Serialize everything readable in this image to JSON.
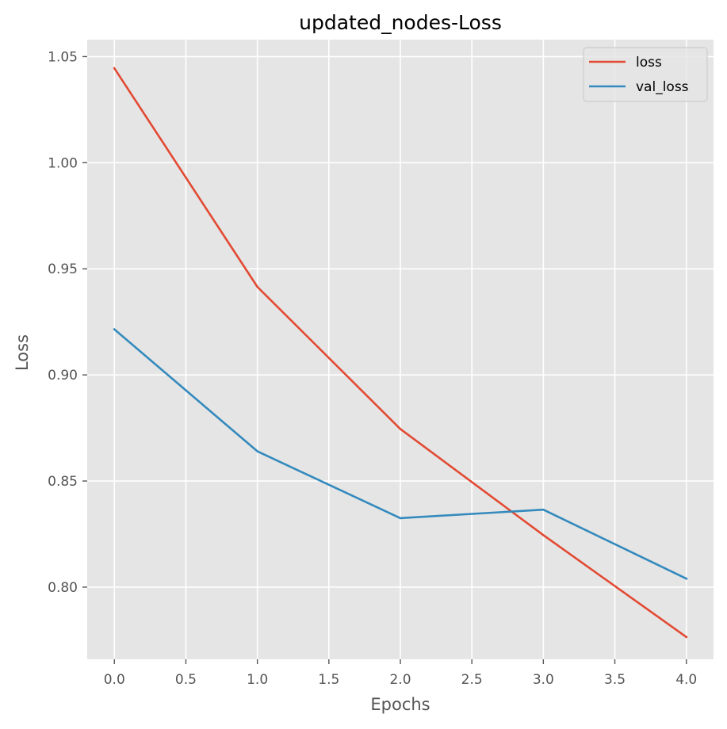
{
  "chart_data": {
    "type": "line",
    "title": "updated_nodes-Loss",
    "xlabel": "Epochs",
    "ylabel": "Loss",
    "x": [
      0,
      1,
      2,
      3,
      4
    ],
    "xlim": [
      -0.19,
      4.19
    ],
    "ylim": [
      0.766,
      1.058
    ],
    "xticks": [
      0.0,
      0.5,
      1.0,
      1.5,
      2.0,
      2.5,
      3.0,
      3.5,
      4.0
    ],
    "xtick_labels": [
      "0.0",
      "0.5",
      "1.0",
      "1.5",
      "2.0",
      "2.5",
      "3.0",
      "3.5",
      "4.0"
    ],
    "yticks": [
      0.8,
      0.85,
      0.9,
      0.95,
      1.0,
      1.05
    ],
    "ytick_labels": [
      "0.80",
      "0.85",
      "0.90",
      "0.95",
      "1.00",
      "1.05"
    ],
    "series": [
      {
        "name": "loss",
        "color": "#E24A33",
        "values": [
          1.0445,
          0.9415,
          0.8745,
          0.8245,
          0.7765
        ]
      },
      {
        "name": "val_loss",
        "color": "#348ABD",
        "values": [
          0.9215,
          0.864,
          0.8325,
          0.8365,
          0.804
        ]
      }
    ],
    "grid": true,
    "legend_position": "top-right",
    "style": "ggplot",
    "background_color": "#E5E5E5",
    "grid_color": "#FFFFFF"
  }
}
